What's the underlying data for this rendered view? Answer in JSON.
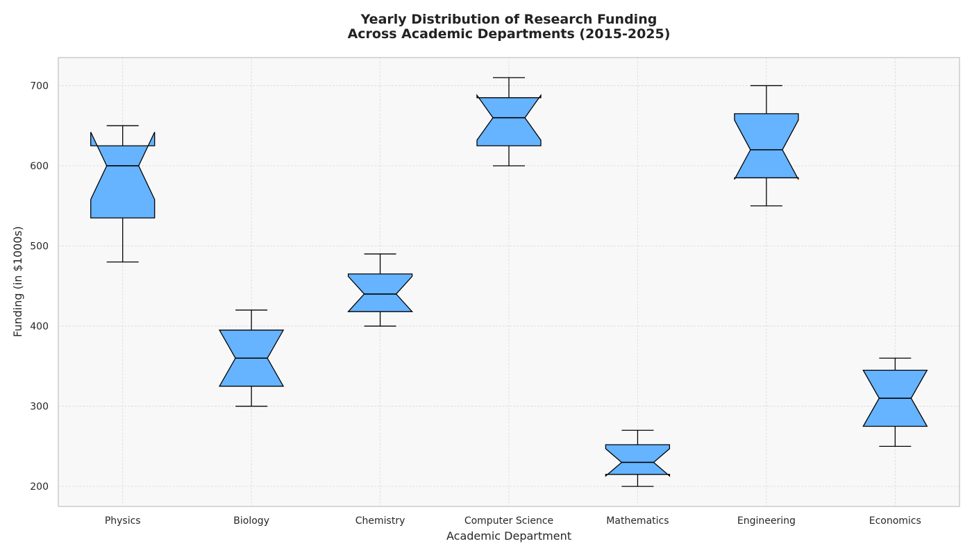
{
  "chart_data": {
    "type": "box",
    "title_lines": [
      "Yearly Distribution of Research Funding",
      "Across Academic Departments (2015-2025)"
    ],
    "xlabel": "Academic Department",
    "ylabel": "Funding (in $1000s)",
    "ylim": [
      175,
      735
    ],
    "yticks": [
      "200",
      "300",
      "400",
      "500",
      "600",
      "700"
    ],
    "grid": true,
    "notched": true,
    "box_color": "#66b3ff",
    "edge_color": "#000000",
    "plot_background": "#f8f8f8",
    "categories": [
      "Physics",
      "Biology",
      "Chemistry",
      "Computer Science",
      "Mathematics",
      "Engineering",
      "Economics"
    ],
    "boxes": [
      {
        "category": "Physics",
        "whisker_low": 480,
        "q1": 535,
        "median": 600,
        "q3": 625,
        "whisker_high": 650,
        "notch_low": 558,
        "notch_high": 642
      },
      {
        "category": "Biology",
        "whisker_low": 300,
        "q1": 325,
        "median": 360,
        "q3": 395,
        "whisker_high": 420,
        "notch_low": 325,
        "notch_high": 395
      },
      {
        "category": "Chemistry",
        "whisker_low": 400,
        "q1": 418,
        "median": 440,
        "q3": 465,
        "whisker_high": 490,
        "notch_low": 418,
        "notch_high": 462
      },
      {
        "category": "Computer Science",
        "whisker_low": 600,
        "q1": 625,
        "median": 660,
        "q3": 685,
        "whisker_high": 710,
        "notch_low": 632,
        "notch_high": 688
      },
      {
        "category": "Mathematics",
        "whisker_low": 200,
        "q1": 215,
        "median": 230,
        "q3": 252,
        "whisker_high": 270,
        "notch_low": 213,
        "notch_high": 247
      },
      {
        "category": "Engineering",
        "whisker_low": 550,
        "q1": 585,
        "median": 620,
        "q3": 665,
        "whisker_high": 700,
        "notch_low": 583,
        "notch_high": 657
      },
      {
        "category": "Economics",
        "whisker_low": 250,
        "q1": 275,
        "median": 310,
        "q3": 345,
        "whisker_high": 360,
        "notch_low": 275,
        "notch_high": 345
      }
    ]
  }
}
